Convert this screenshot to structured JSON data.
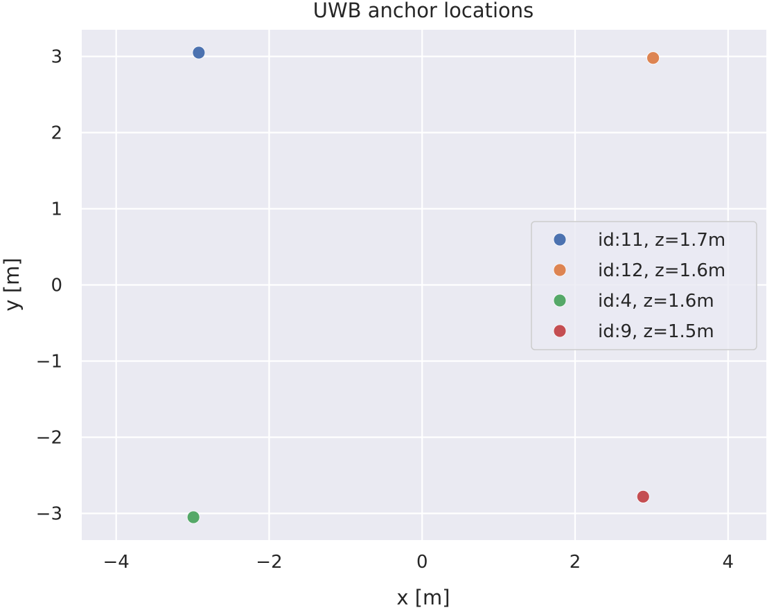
{
  "chart_data": {
    "type": "scatter",
    "title": "UWB anchor locations",
    "xlabel": "x [m]",
    "ylabel": "y [m]",
    "xlim": [
      -4.45,
      4.5
    ],
    "ylim": [
      -3.35,
      3.35
    ],
    "xticks": [
      -4,
      -2,
      0,
      2,
      4
    ],
    "yticks": [
      -3,
      -2,
      -1,
      0,
      1,
      2,
      3
    ],
    "xtick_labels": [
      "−4",
      "−2",
      "0",
      "2",
      "4"
    ],
    "ytick_labels": [
      "−3",
      "−2",
      "−1",
      "0",
      "1",
      "2",
      "3"
    ],
    "grid": true,
    "legend_position": "center-right",
    "background": "#eaeaf2",
    "series": [
      {
        "name": "id:11, z=1.7m",
        "color": "#4c72b0",
        "x": [
          -2.92
        ],
        "y": [
          3.05
        ]
      },
      {
        "name": "id:12, z=1.6m",
        "color": "#dd8452",
        "x": [
          3.02
        ],
        "y": [
          2.98
        ]
      },
      {
        "name": "id:4, z=1.6m",
        "color": "#55a868",
        "x": [
          -2.99
        ],
        "y": [
          -3.05
        ]
      },
      {
        "name": "id:9, z=1.5m",
        "color": "#c44e52",
        "x": [
          2.89
        ],
        "y": [
          -2.78
        ]
      }
    ]
  }
}
